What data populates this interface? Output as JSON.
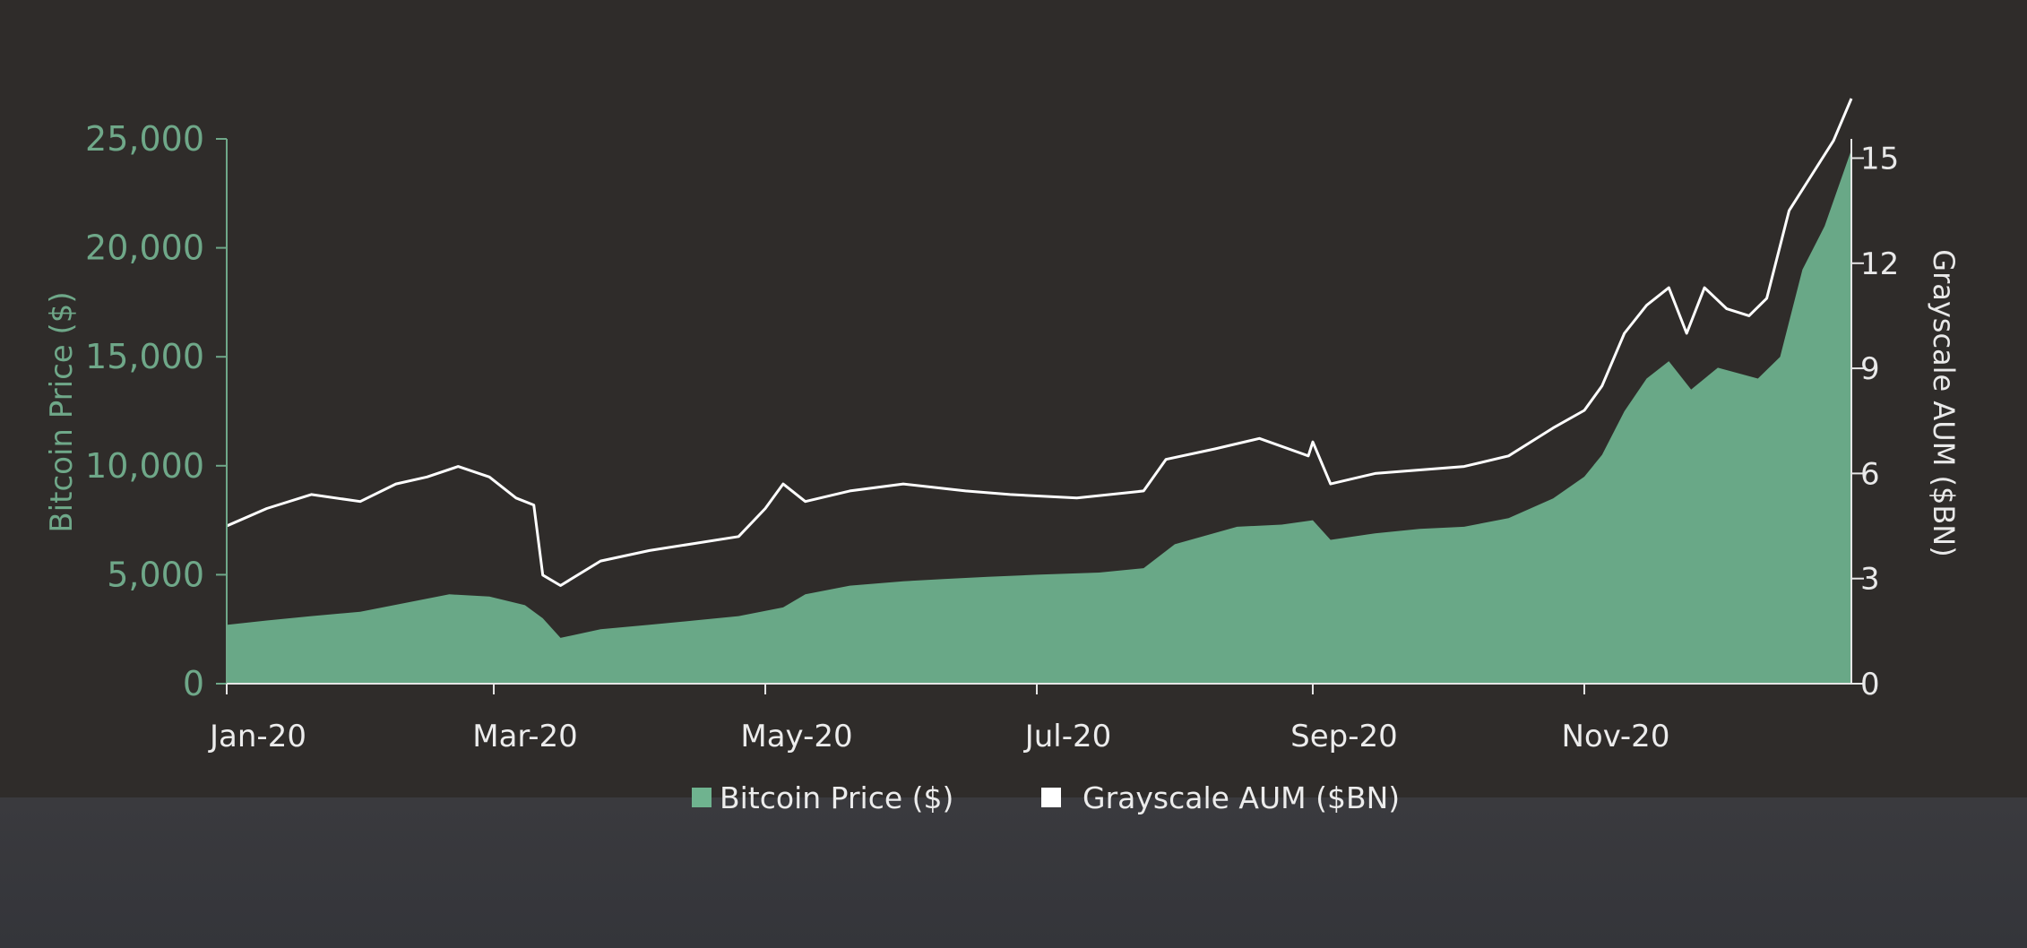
{
  "chart_data": {
    "type": "area",
    "x_tick_labels": [
      "Jan-20",
      "Mar-20",
      "May-20",
      "Jul-20",
      "Sep-20",
      "Nov-20"
    ],
    "x_ticks": [
      "2020-01-01",
      "2020-03-01",
      "2020-05-01",
      "2020-07-01",
      "2020-09-01",
      "2020-11-01"
    ],
    "xlim": [
      "2020-01-01",
      "2020-12-31"
    ],
    "left_axis": {
      "label": "Bitcoin Price ($)",
      "ylim": [
        0,
        25000
      ],
      "ticks": [
        0,
        5000,
        10000,
        15000,
        20000,
        25000
      ],
      "tick_labels": [
        "0",
        "5,000",
        "10,000",
        "15,000",
        "20,000",
        "25,000"
      ]
    },
    "right_axis": {
      "label": "Grayscale AUM ($BN)",
      "ylim": [
        0,
        16.7
      ],
      "ticks": [
        0,
        3,
        6,
        9,
        12,
        15
      ],
      "tick_labels": [
        "0",
        "3",
        "6",
        "9",
        "12",
        "15"
      ]
    },
    "series": [
      {
        "name": "Bitcoin Price ($)",
        "type": "area",
        "axis": "left",
        "color": "#6fb38f",
        "points": [
          [
            "2020-01-01",
            2700
          ],
          [
            "2020-01-10",
            2900
          ],
          [
            "2020-01-20",
            3100
          ],
          [
            "2020-01-31",
            3300
          ],
          [
            "2020-02-10",
            3700
          ],
          [
            "2020-02-20",
            4100
          ],
          [
            "2020-02-29",
            4000
          ],
          [
            "2020-03-08",
            3600
          ],
          [
            "2020-03-12",
            3000
          ],
          [
            "2020-03-16",
            2100
          ],
          [
            "2020-03-25",
            2500
          ],
          [
            "2020-04-05",
            2700
          ],
          [
            "2020-04-15",
            2900
          ],
          [
            "2020-04-25",
            3100
          ],
          [
            "2020-05-05",
            3500
          ],
          [
            "2020-05-10",
            4100
          ],
          [
            "2020-05-20",
            4500
          ],
          [
            "2020-06-01",
            4700
          ],
          [
            "2020-06-10",
            4800
          ],
          [
            "2020-06-20",
            4900
          ],
          [
            "2020-07-01",
            5000
          ],
          [
            "2020-07-15",
            5100
          ],
          [
            "2020-07-25",
            5300
          ],
          [
            "2020-08-01",
            6400
          ],
          [
            "2020-08-15",
            7200
          ],
          [
            "2020-08-25",
            7300
          ],
          [
            "2020-09-01",
            7500
          ],
          [
            "2020-09-05",
            6600
          ],
          [
            "2020-09-15",
            6900
          ],
          [
            "2020-09-25",
            7100
          ],
          [
            "2020-10-05",
            7200
          ],
          [
            "2020-10-15",
            7600
          ],
          [
            "2020-10-25",
            8500
          ],
          [
            "2020-11-01",
            9500
          ],
          [
            "2020-11-05",
            10500
          ],
          [
            "2020-11-10",
            12500
          ],
          [
            "2020-11-15",
            14000
          ],
          [
            "2020-11-20",
            14800
          ],
          [
            "2020-11-25",
            13500
          ],
          [
            "2020-12-01",
            14500
          ],
          [
            "2020-12-10",
            14000
          ],
          [
            "2020-12-15",
            15000
          ],
          [
            "2020-12-20",
            19000
          ],
          [
            "2020-12-25",
            21000
          ],
          [
            "2020-12-31",
            24500
          ]
        ]
      },
      {
        "name": "Grayscale AUM ($BN)",
        "type": "line",
        "axis": "right",
        "color": "#ffffff",
        "points": [
          [
            "2020-01-01",
            4.5
          ],
          [
            "2020-01-10",
            5.0
          ],
          [
            "2020-01-20",
            5.4
          ],
          [
            "2020-01-31",
            5.2
          ],
          [
            "2020-02-08",
            5.7
          ],
          [
            "2020-02-15",
            5.9
          ],
          [
            "2020-02-22",
            6.2
          ],
          [
            "2020-02-29",
            5.9
          ],
          [
            "2020-03-06",
            5.3
          ],
          [
            "2020-03-10",
            5.1
          ],
          [
            "2020-03-12",
            3.1
          ],
          [
            "2020-03-16",
            2.8
          ],
          [
            "2020-03-25",
            3.5
          ],
          [
            "2020-04-05",
            3.8
          ],
          [
            "2020-04-15",
            4.0
          ],
          [
            "2020-04-25",
            4.2
          ],
          [
            "2020-05-01",
            5.0
          ],
          [
            "2020-05-05",
            5.7
          ],
          [
            "2020-05-10",
            5.2
          ],
          [
            "2020-05-20",
            5.5
          ],
          [
            "2020-06-01",
            5.7
          ],
          [
            "2020-06-15",
            5.5
          ],
          [
            "2020-06-25",
            5.4
          ],
          [
            "2020-07-10",
            5.3
          ],
          [
            "2020-07-25",
            5.5
          ],
          [
            "2020-07-30",
            6.4
          ],
          [
            "2020-08-10",
            6.7
          ],
          [
            "2020-08-20",
            7.0
          ],
          [
            "2020-08-31",
            6.5
          ],
          [
            "2020-09-01",
            6.9
          ],
          [
            "2020-09-05",
            5.7
          ],
          [
            "2020-09-15",
            6.0
          ],
          [
            "2020-09-25",
            6.1
          ],
          [
            "2020-10-05",
            6.2
          ],
          [
            "2020-10-15",
            6.5
          ],
          [
            "2020-10-25",
            7.3
          ],
          [
            "2020-11-01",
            7.8
          ],
          [
            "2020-11-05",
            8.5
          ],
          [
            "2020-11-10",
            10.0
          ],
          [
            "2020-11-15",
            10.8
          ],
          [
            "2020-11-20",
            11.3
          ],
          [
            "2020-11-24",
            10.0
          ],
          [
            "2020-11-28",
            11.3
          ],
          [
            "2020-12-03",
            10.7
          ],
          [
            "2020-12-08",
            10.5
          ],
          [
            "2020-12-12",
            11.0
          ],
          [
            "2020-12-17",
            13.5
          ],
          [
            "2020-12-22",
            14.5
          ],
          [
            "2020-12-27",
            15.5
          ],
          [
            "2020-12-31",
            16.7
          ]
        ]
      }
    ],
    "legend": {
      "placement": "bottom-center",
      "items": [
        {
          "label": "Bitcoin Price ($)",
          "color": "#6fb38f"
        },
        {
          "label": "Grayscale AUM ($BN)",
          "color": "#ffffff"
        }
      ]
    },
    "grid": false
  }
}
